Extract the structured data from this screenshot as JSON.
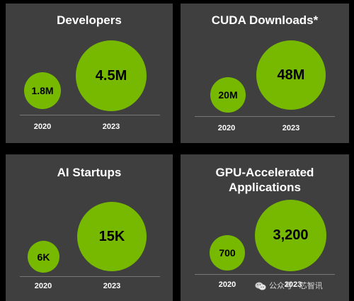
{
  "colors": {
    "background": "#000000",
    "panel": "#3f3f3f",
    "bubble": "#76b900",
    "text": "#ffffff",
    "value_text": "#000000"
  },
  "chart_data": [
    {
      "type": "bubble",
      "title": "Developers",
      "categories": [
        "2020",
        "2023"
      ],
      "labels": [
        "1.8M",
        "4.5M"
      ],
      "values": [
        1800000,
        4500000
      ]
    },
    {
      "type": "bubble",
      "title": "CUDA Downloads*",
      "categories": [
        "2020",
        "2023"
      ],
      "labels": [
        "20M",
        "48M"
      ],
      "values": [
        20000000,
        48000000
      ]
    },
    {
      "type": "bubble",
      "title": "AI Startups",
      "categories": [
        "2020",
        "2023"
      ],
      "labels": [
        "6K",
        "15K"
      ],
      "values": [
        6000,
        15000
      ]
    },
    {
      "type": "bubble",
      "title_lines": [
        "GPU-Accelerated",
        "Applications"
      ],
      "categories": [
        "2020",
        "2023"
      ],
      "labels": [
        "700",
        "3,200"
      ],
      "values": [
        700,
        3200
      ]
    }
  ],
  "watermark": {
    "icon": "wechat-icon",
    "text": "公众号 · 芯智讯"
  }
}
